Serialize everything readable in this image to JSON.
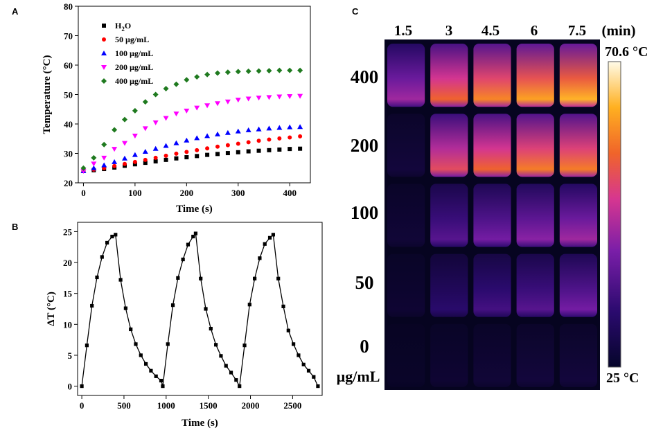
{
  "panels": {
    "a": "A",
    "b": "B",
    "c": "C"
  },
  "chart_data": [
    {
      "type": "scatter",
      "panel": "A",
      "xlabel": "Time (s)",
      "ylabel": "Temperature (°C)",
      "xlim": [
        -10,
        440
      ],
      "ylim": [
        20,
        80
      ],
      "xticks": [
        0,
        100,
        200,
        300,
        400
      ],
      "yticks": [
        20,
        30,
        40,
        50,
        60,
        70,
        80
      ],
      "x": [
        0,
        20,
        40,
        60,
        80,
        100,
        120,
        140,
        160,
        180,
        200,
        220,
        240,
        260,
        280,
        300,
        320,
        340,
        360,
        380,
        400,
        420
      ],
      "series": [
        {
          "name": "H2O",
          "legend_base": "H",
          "legend_sub": "2",
          "legend_rest": "O",
          "color": "#000000",
          "marker": "square",
          "values": [
            24.0,
            24.3,
            24.7,
            25.2,
            25.8,
            26.3,
            26.8,
            27.3,
            27.8,
            28.3,
            28.7,
            29.1,
            29.5,
            29.8,
            30.1,
            30.4,
            30.7,
            30.9,
            31.1,
            31.3,
            31.5,
            31.6
          ]
        },
        {
          "name": "50 µg/mL",
          "color": "#ff0000",
          "marker": "circle",
          "values": [
            24.0,
            24.5,
            25.0,
            25.7,
            26.4,
            27.1,
            27.8,
            28.5,
            29.2,
            29.9,
            30.5,
            31.1,
            31.7,
            32.3,
            32.8,
            33.3,
            33.8,
            34.3,
            34.7,
            35.1,
            35.4,
            35.8
          ]
        },
        {
          "name": "100 µg/mL",
          "color": "#0000ff",
          "marker": "triangle-up",
          "values": [
            24.0,
            25.0,
            26.0,
            27.1,
            28.3,
            29.5,
            30.6,
            31.6,
            32.6,
            33.5,
            34.4,
            35.2,
            35.9,
            36.5,
            37.0,
            37.5,
            37.9,
            38.2,
            38.5,
            38.7,
            38.9,
            39.0
          ]
        },
        {
          "name": "200 µg/mL",
          "color": "#ff00ff",
          "marker": "triangle-down",
          "values": [
            24.0,
            26.5,
            28.5,
            31.5,
            33.5,
            36.0,
            38.5,
            40.5,
            42.0,
            43.5,
            44.5,
            45.5,
            46.3,
            47.0,
            47.6,
            48.2,
            48.6,
            48.9,
            49.1,
            49.3,
            49.4,
            49.5
          ]
        },
        {
          "name": "400 µg/mL",
          "color": "#1f7a1f",
          "marker": "diamond",
          "values": [
            25.0,
            28.5,
            33.0,
            38.0,
            41.5,
            44.5,
            47.5,
            50.0,
            52.0,
            53.5,
            55.0,
            56.0,
            56.8,
            57.3,
            57.6,
            57.8,
            57.9,
            58.0,
            58.1,
            58.2,
            58.2,
            58.2
          ]
        }
      ],
      "legend_position": "top-left"
    },
    {
      "type": "line",
      "panel": "B",
      "xlabel": "Time (s)",
      "ylabel": "ΔT (°C)",
      "xlim": [
        -50,
        2850
      ],
      "ylim": [
        -1.5,
        26.5
      ],
      "xticks": [
        0,
        500,
        1000,
        1500,
        2000,
        2500
      ],
      "yticks": [
        0,
        5,
        10,
        15,
        20,
        25
      ],
      "series": [
        {
          "name": "ΔT",
          "color": "#000000",
          "marker": "square",
          "x": [
            0,
            60,
            120,
            180,
            240,
            300,
            360,
            400,
            460,
            520,
            580,
            640,
            700,
            760,
            820,
            880,
            940,
            960,
            1020,
            1080,
            1140,
            1200,
            1260,
            1320,
            1350,
            1410,
            1470,
            1530,
            1590,
            1650,
            1710,
            1770,
            1830,
            1870,
            1930,
            1990,
            2050,
            2110,
            2170,
            2230,
            2270,
            2330,
            2390,
            2450,
            2510,
            2570,
            2630,
            2690,
            2750,
            2800
          ],
          "y": [
            0,
            6.6,
            13,
            17.6,
            20.9,
            23.2,
            24.2,
            24.5,
            17.2,
            12.6,
            9.2,
            6.8,
            5.0,
            3.6,
            2.5,
            1.6,
            0.9,
            0,
            6.8,
            13.1,
            17.5,
            20.5,
            22.9,
            24.2,
            24.7,
            17.4,
            12.5,
            9.3,
            6.7,
            4.9,
            3.3,
            2.2,
            1.0,
            0,
            6.6,
            13.2,
            17.4,
            20.7,
            23.0,
            24.0,
            24.5,
            17.4,
            12.9,
            9.0,
            6.8,
            5.0,
            3.5,
            2.5,
            1.5,
            0
          ]
        }
      ]
    }
  ],
  "thermal_panel": {
    "time_labels": [
      "1.5",
      "3",
      "4.5",
      "6",
      "7.5",
      "(min)"
    ],
    "row_labels": [
      "400",
      "200",
      "100",
      "50",
      "0"
    ],
    "unit_label": "µg/mL",
    "scale_max": "70.6 °C",
    "scale_min": "25 °C",
    "intensity": [
      [
        0.4,
        0.66,
        0.74,
        0.8,
        0.84
      ],
      [
        0.06,
        0.58,
        0.66,
        0.72,
        0.72
      ],
      [
        0.05,
        0.26,
        0.32,
        0.36,
        0.4
      ],
      [
        0.04,
        0.16,
        0.22,
        0.26,
        0.32
      ],
      [
        0.02,
        0.04,
        0.05,
        0.06,
        0.06
      ]
    ]
  }
}
